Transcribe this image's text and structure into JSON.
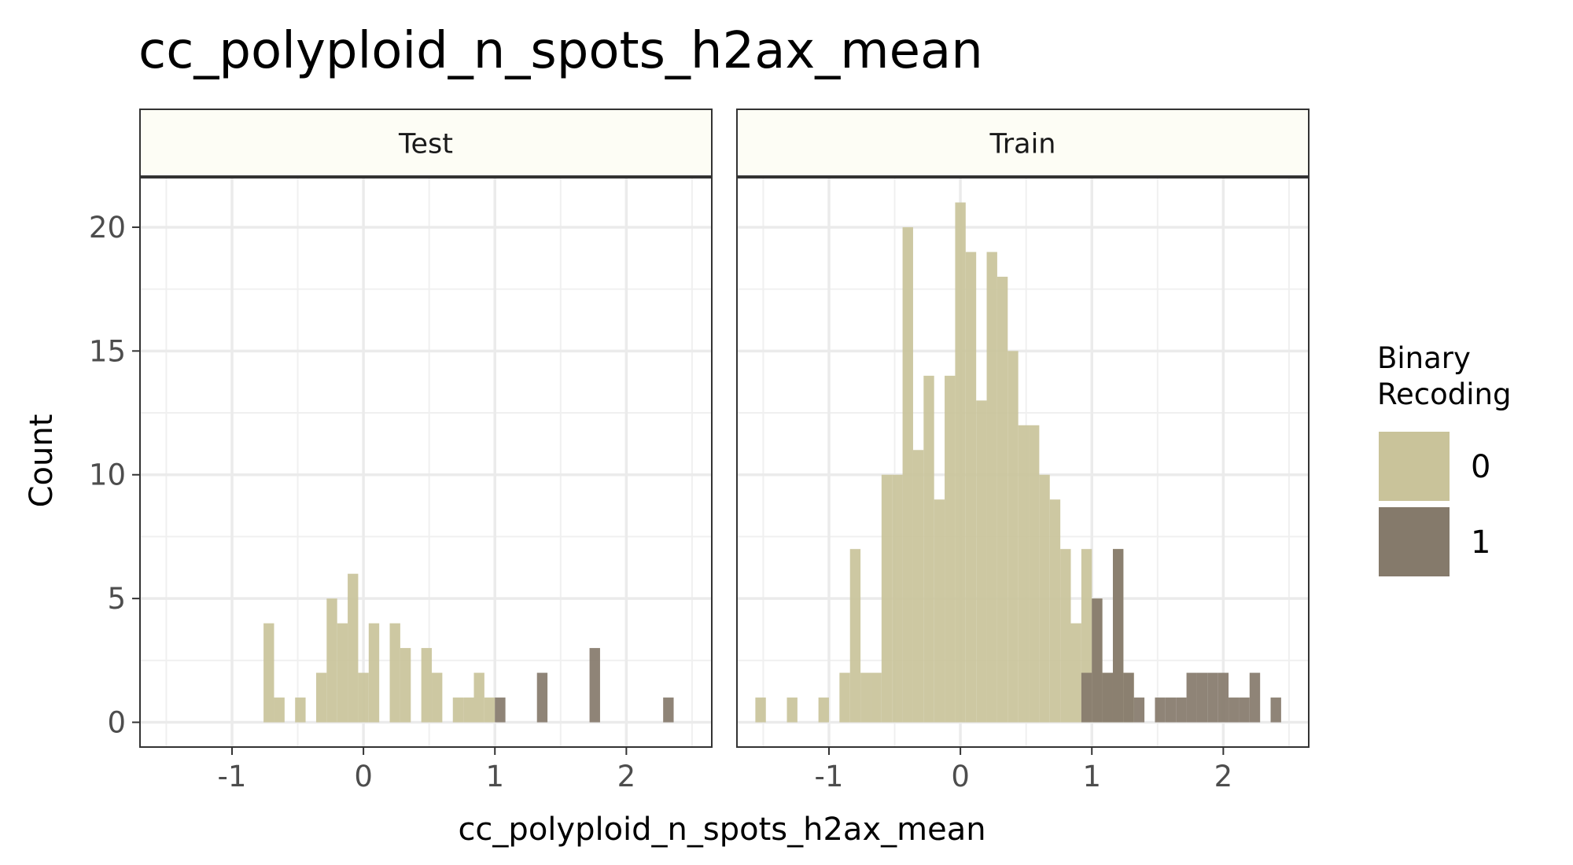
{
  "chart_data": {
    "type": "histogram",
    "title": "cc_polyploid_n_spots_h2ax_mean",
    "xlabel": "cc_polyploid_n_spots_h2ax_mean",
    "ylabel": "Count",
    "xlim": [
      -1.7,
      2.65
    ],
    "ylim": [
      -1,
      22
    ],
    "x_ticks": [
      -1,
      0,
      1,
      2
    ],
    "x_tick_labels": [
      "-1",
      "0",
      "1",
      "2"
    ],
    "y_ticks": [
      0,
      5,
      10,
      15,
      20
    ],
    "y_tick_labels": [
      "0",
      "5",
      "10",
      "15",
      "20"
    ],
    "bin_width": 0.08,
    "grid": true,
    "legend": {
      "title_lines": [
        "Binary",
        "Recoding"
      ],
      "position": "right",
      "entries": [
        {
          "label": "0",
          "color": "#c9c39a"
        },
        {
          "label": "1",
          "color": "#857a6b"
        }
      ]
    },
    "colors": {
      "class_0": "#c9c39a",
      "class_1": "#857a6b",
      "strip_fill": "#fdfdf5"
    },
    "panels": [
      {
        "name": "Test",
        "series": [
          {
            "name": "0",
            "bins": [
              {
                "x": -0.72,
                "count": 4
              },
              {
                "x": -0.64,
                "count": 1
              },
              {
                "x": -0.48,
                "count": 1
              },
              {
                "x": -0.32,
                "count": 2
              },
              {
                "x": -0.24,
                "count": 5
              },
              {
                "x": -0.16,
                "count": 4
              },
              {
                "x": -0.08,
                "count": 6
              },
              {
                "x": 0.0,
                "count": 2
              },
              {
                "x": 0.08,
                "count": 4
              },
              {
                "x": 0.24,
                "count": 4
              },
              {
                "x": 0.32,
                "count": 3
              },
              {
                "x": 0.48,
                "count": 3
              },
              {
                "x": 0.56,
                "count": 2
              },
              {
                "x": 0.72,
                "count": 1
              },
              {
                "x": 0.8,
                "count": 1
              },
              {
                "x": 0.88,
                "count": 2
              },
              {
                "x": 0.96,
                "count": 1
              }
            ]
          },
          {
            "name": "1",
            "bins": [
              {
                "x": 1.04,
                "count": 1
              },
              {
                "x": 1.36,
                "count": 2
              },
              {
                "x": 1.76,
                "count": 3
              },
              {
                "x": 2.32,
                "count": 1
              }
            ]
          }
        ]
      },
      {
        "name": "Train",
        "series": [
          {
            "name": "0",
            "bins": [
              {
                "x": -1.52,
                "count": 1
              },
              {
                "x": -1.28,
                "count": 1
              },
              {
                "x": -1.04,
                "count": 1
              },
              {
                "x": -0.88,
                "count": 2
              },
              {
                "x": -0.8,
                "count": 7
              },
              {
                "x": -0.72,
                "count": 2
              },
              {
                "x": -0.64,
                "count": 2
              },
              {
                "x": -0.56,
                "count": 10
              },
              {
                "x": -0.48,
                "count": 10
              },
              {
                "x": -0.4,
                "count": 20
              },
              {
                "x": -0.32,
                "count": 11
              },
              {
                "x": -0.24,
                "count": 14
              },
              {
                "x": -0.16,
                "count": 9
              },
              {
                "x": -0.08,
                "count": 14
              },
              {
                "x": 0.0,
                "count": 21
              },
              {
                "x": 0.08,
                "count": 19
              },
              {
                "x": 0.16,
                "count": 13
              },
              {
                "x": 0.24,
                "count": 19
              },
              {
                "x": 0.32,
                "count": 18
              },
              {
                "x": 0.4,
                "count": 15
              },
              {
                "x": 0.48,
                "count": 12
              },
              {
                "x": 0.56,
                "count": 12
              },
              {
                "x": 0.64,
                "count": 10
              },
              {
                "x": 0.72,
                "count": 9
              },
              {
                "x": 0.8,
                "count": 7
              },
              {
                "x": 0.88,
                "count": 4
              },
              {
                "x": 0.96,
                "count": 7
              },
              {
                "x": 1.04,
                "count": 5
              },
              {
                "x": 1.12,
                "count": 2
              },
              {
                "x": 1.2,
                "count": 7
              },
              {
                "x": 1.28,
                "count": 2
              }
            ]
          },
          {
            "name": "1",
            "bins": [
              {
                "x": 0.96,
                "count": 2
              },
              {
                "x": 1.04,
                "count": 5
              },
              {
                "x": 1.12,
                "count": 2
              },
              {
                "x": 1.2,
                "count": 7
              },
              {
                "x": 1.28,
                "count": 2
              },
              {
                "x": 1.36,
                "count": 1
              },
              {
                "x": 1.52,
                "count": 1
              },
              {
                "x": 1.6,
                "count": 1
              },
              {
                "x": 1.68,
                "count": 1
              },
              {
                "x": 1.76,
                "count": 2
              },
              {
                "x": 1.84,
                "count": 2
              },
              {
                "x": 1.92,
                "count": 2
              },
              {
                "x": 2.0,
                "count": 2
              },
              {
                "x": 2.08,
                "count": 1
              },
              {
                "x": 2.16,
                "count": 1
              },
              {
                "x": 2.24,
                "count": 2
              },
              {
                "x": 2.4,
                "count": 1
              }
            ]
          }
        ]
      }
    ]
  }
}
